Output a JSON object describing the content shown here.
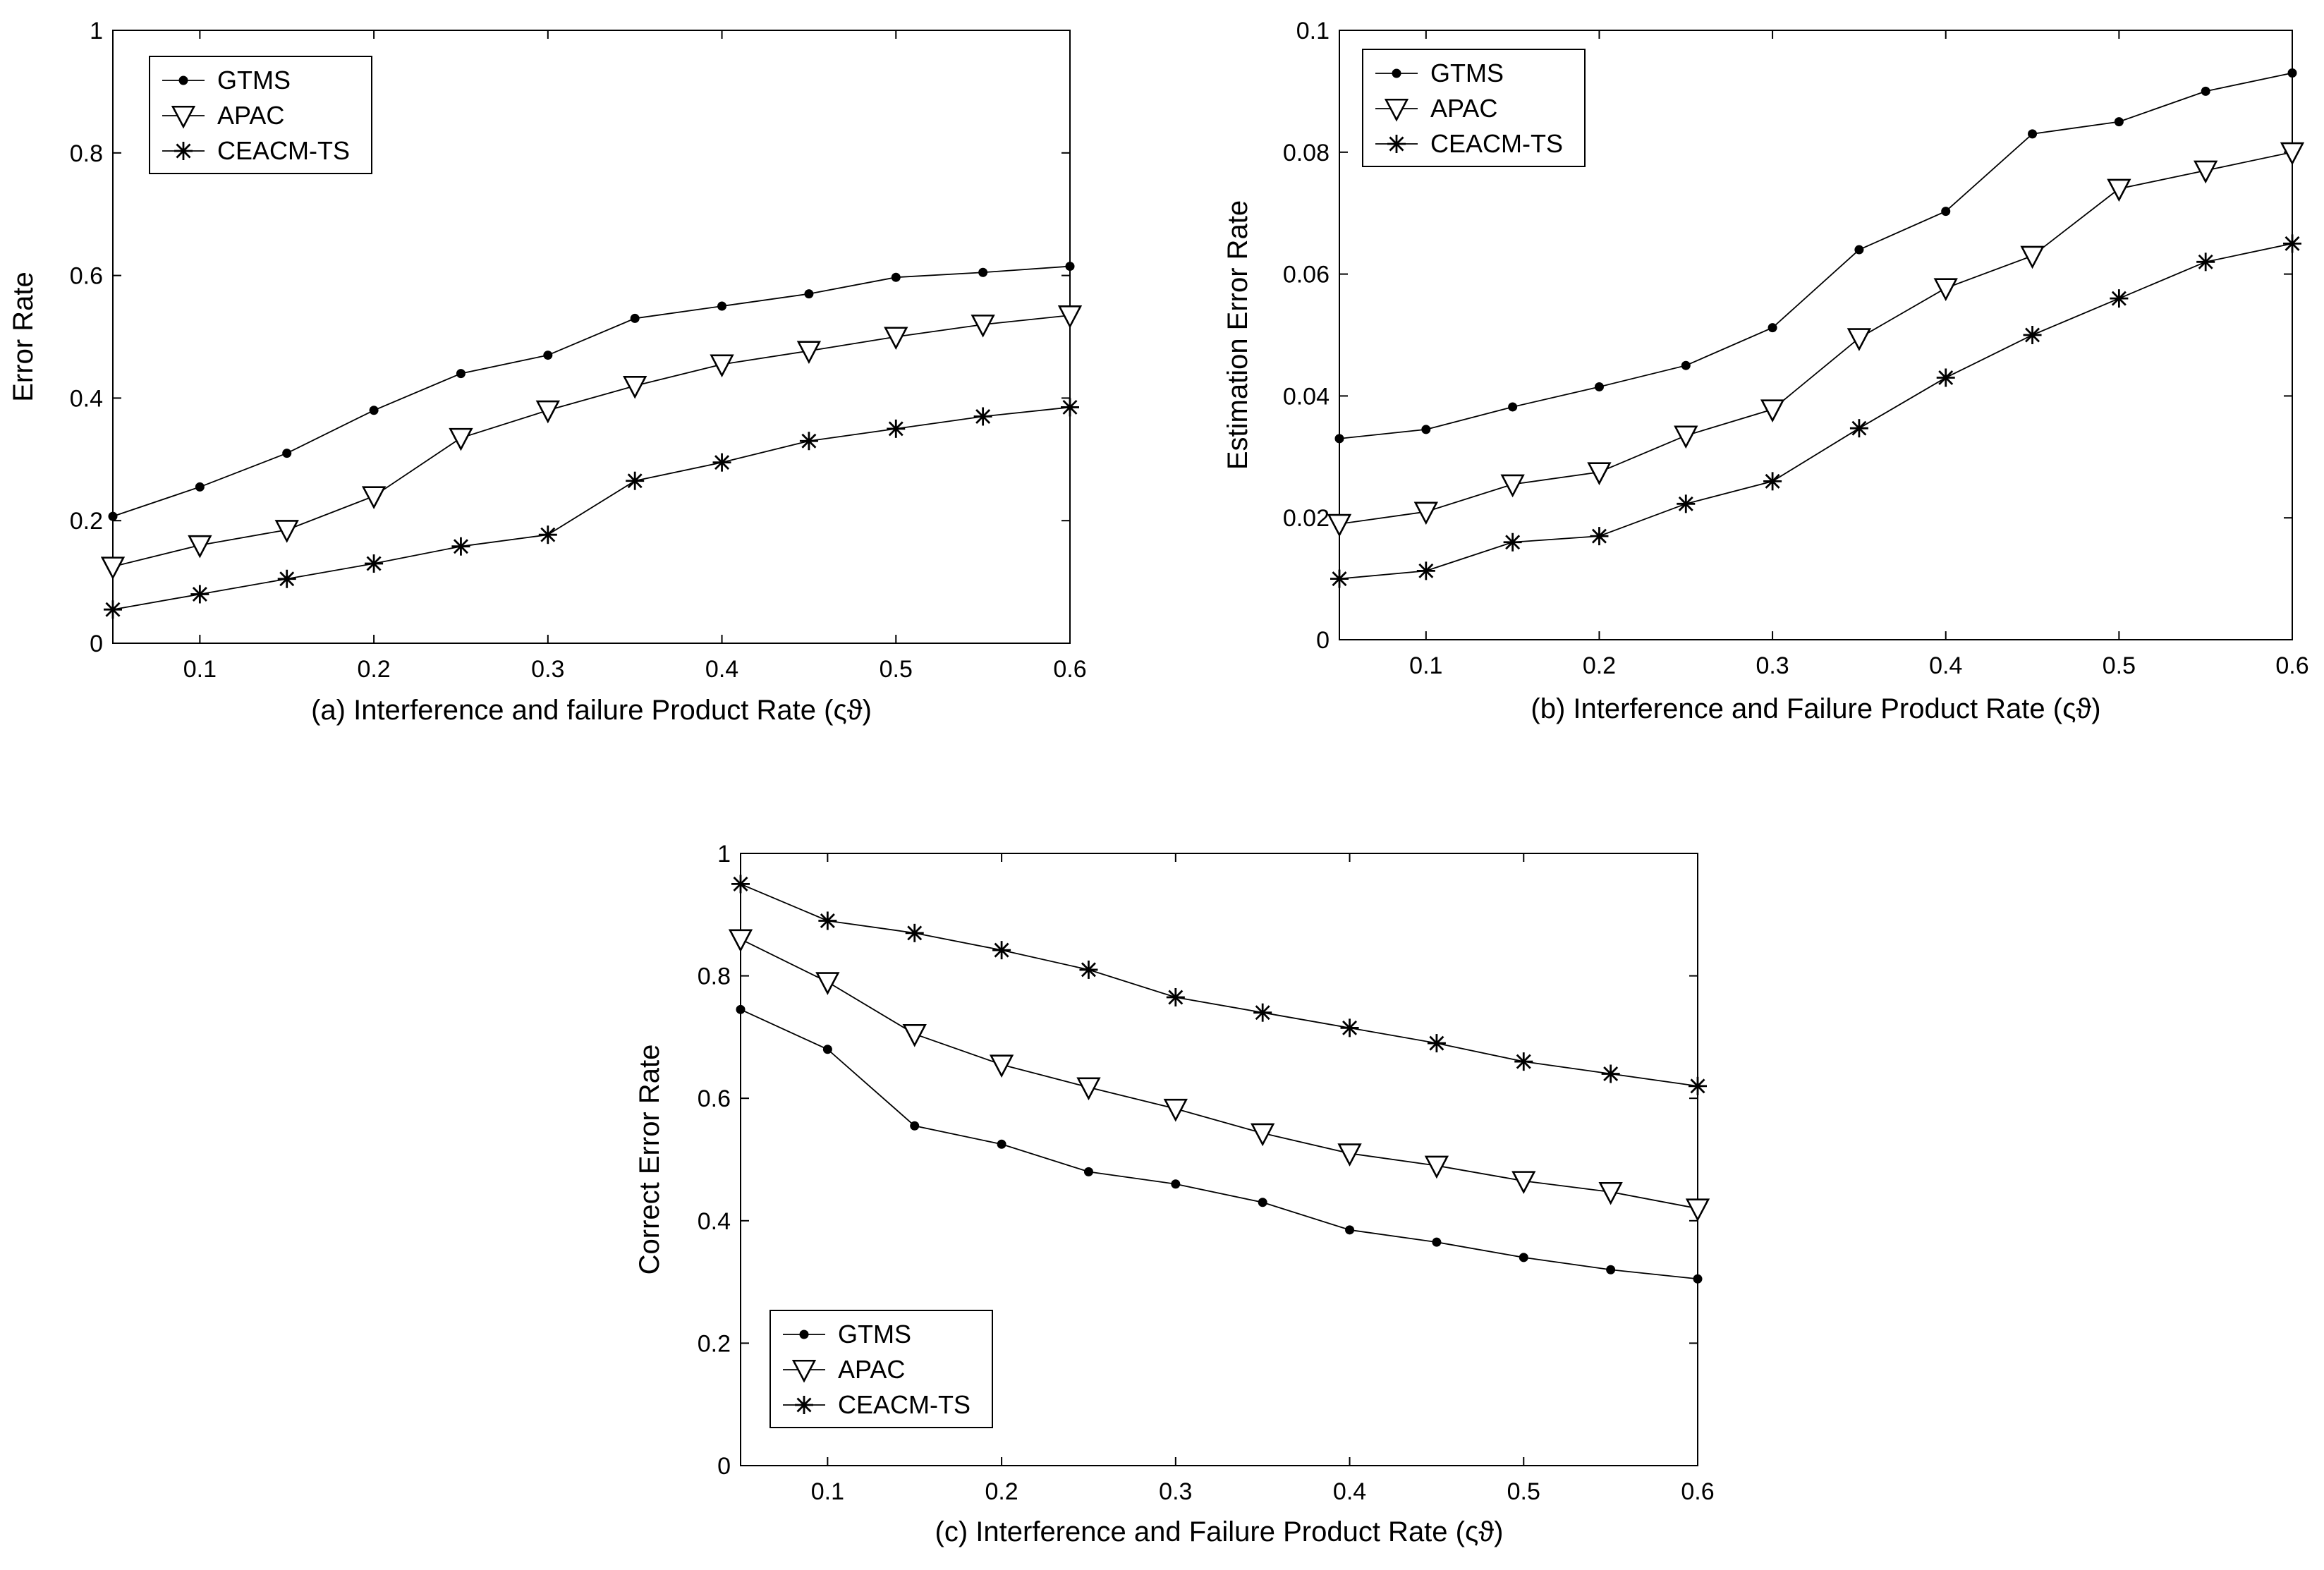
{
  "chart_data": [
    {
      "id": "a",
      "type": "line",
      "title": "",
      "xlabel": "(a) Interference and failure Product Rate (ςϑ)",
      "ylabel": "Error Rate",
      "xlim": [
        0.05,
        0.6
      ],
      "ylim": [
        0,
        1
      ],
      "xticks": [
        0.1,
        0.2,
        0.3,
        0.4,
        0.5,
        0.6
      ],
      "xtick_labels": [
        "0.1",
        "0.2",
        "0.3",
        "0.4",
        "0.5",
        "0.6"
      ],
      "yticks": [
        0,
        0.2,
        0.4,
        0.6,
        0.8,
        1
      ],
      "ytick_labels": [
        "0",
        "0.2",
        "0.4",
        "0.6",
        "0.8",
        "1"
      ],
      "legend_position": "top-left",
      "x": [
        0.05,
        0.1,
        0.15,
        0.2,
        0.25,
        0.3,
        0.35,
        0.4,
        0.45,
        0.5,
        0.55,
        0.6
      ],
      "series": [
        {
          "name": "GTMS",
          "marker": "dot",
          "values": [
            0.207,
            0.255,
            0.31,
            0.38,
            0.44,
            0.47,
            0.53,
            0.55,
            0.57,
            0.597,
            0.605,
            0.615
          ]
        },
        {
          "name": "APAC",
          "marker": "triangle",
          "values": [
            0.125,
            0.16,
            0.185,
            0.24,
            0.335,
            0.38,
            0.42,
            0.455,
            0.477,
            0.5,
            0.52,
            0.535
          ]
        },
        {
          "name": "CEACM-TS",
          "marker": "star",
          "values": [
            0.055,
            0.08,
            0.105,
            0.13,
            0.158,
            0.177,
            0.265,
            0.295,
            0.33,
            0.35,
            0.37,
            0.385
          ]
        }
      ]
    },
    {
      "id": "b",
      "type": "line",
      "title": "",
      "xlabel": "(b) Interference and Failure Product Rate (ςϑ)",
      "ylabel": "Estimation Error Rate",
      "xlim": [
        0.05,
        0.6
      ],
      "ylim": [
        0,
        0.1
      ],
      "xticks": [
        0.1,
        0.2,
        0.3,
        0.4,
        0.5,
        0.6
      ],
      "xtick_labels": [
        "0.1",
        "0.2",
        "0.3",
        "0.4",
        "0.5",
        "0.6"
      ],
      "yticks": [
        0,
        0.02,
        0.04,
        0.06,
        0.08,
        0.1
      ],
      "ytick_labels": [
        "0",
        "0.02",
        "0.04",
        "0.06",
        "0.08",
        "0.1"
      ],
      "legend_position": "top-left",
      "x": [
        0.05,
        0.1,
        0.15,
        0.2,
        0.25,
        0.3,
        0.35,
        0.4,
        0.45,
        0.5,
        0.55,
        0.6
      ],
      "series": [
        {
          "name": "GTMS",
          "marker": "dot",
          "values": [
            0.033,
            0.0345,
            0.0382,
            0.0415,
            0.045,
            0.0512,
            0.064,
            0.0703,
            0.083,
            0.085,
            0.09,
            0.093
          ]
        },
        {
          "name": "APAC",
          "marker": "triangle",
          "values": [
            0.019,
            0.021,
            0.0255,
            0.0275,
            0.0335,
            0.0378,
            0.0495,
            0.0577,
            0.063,
            0.074,
            0.077,
            0.08
          ]
        },
        {
          "name": "CEACM-TS",
          "marker": "star",
          "values": [
            0.01,
            0.0113,
            0.016,
            0.017,
            0.0223,
            0.026,
            0.0347,
            0.043,
            0.05,
            0.056,
            0.062,
            0.065
          ]
        }
      ]
    },
    {
      "id": "c",
      "type": "line",
      "title": "",
      "xlabel": "(c) Interference and Failure Product Rate (ςϑ)",
      "ylabel": "Correct Error Rate",
      "xlim": [
        0.05,
        0.6
      ],
      "ylim": [
        0,
        1
      ],
      "xticks": [
        0.1,
        0.2,
        0.3,
        0.4,
        0.5,
        0.6
      ],
      "xtick_labels": [
        "0.1",
        "0.2",
        "0.3",
        "0.4",
        "0.5",
        "0.6"
      ],
      "yticks": [
        0,
        0.2,
        0.4,
        0.6,
        0.8,
        1
      ],
      "ytick_labels": [
        "0",
        "0.2",
        "0.4",
        "0.6",
        "0.8",
        "1"
      ],
      "legend_position": "bottom-left",
      "x": [
        0.05,
        0.1,
        0.15,
        0.2,
        0.25,
        0.3,
        0.35,
        0.4,
        0.45,
        0.5,
        0.55,
        0.6
      ],
      "series": [
        {
          "name": "GTMS",
          "marker": "dot",
          "values": [
            0.745,
            0.68,
            0.555,
            0.525,
            0.48,
            0.46,
            0.43,
            0.385,
            0.365,
            0.34,
            0.32,
            0.305
          ]
        },
        {
          "name": "APAC",
          "marker": "triangle",
          "values": [
            0.86,
            0.79,
            0.705,
            0.655,
            0.618,
            0.583,
            0.543,
            0.51,
            0.49,
            0.465,
            0.447,
            0.42
          ]
        },
        {
          "name": "CEACM-TS",
          "marker": "star",
          "values": [
            0.95,
            0.89,
            0.87,
            0.842,
            0.81,
            0.765,
            0.74,
            0.715,
            0.69,
            0.66,
            0.64,
            0.62
          ]
        }
      ]
    }
  ]
}
